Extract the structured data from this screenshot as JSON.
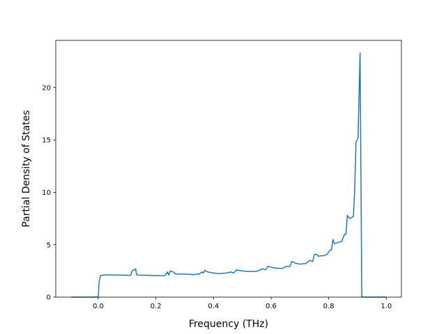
{
  "chart_data": {
    "type": "line",
    "title": "",
    "xlabel": "Frequency (THz)",
    "ylabel": "Partial Density of States",
    "xlim": [
      -0.1475,
      1.0525
    ],
    "ylim": [
      0,
      24.5
    ],
    "xticks": [
      0.0,
      0.2,
      0.4,
      0.6,
      0.8,
      1.0
    ],
    "xtick_labels": [
      "0.0",
      "0.2",
      "0.4",
      "0.6",
      "0.8",
      "1.0"
    ],
    "yticks": [
      0,
      5,
      10,
      15,
      20
    ],
    "ytick_labels": [
      "0",
      "5",
      "10",
      "15",
      "20"
    ],
    "grid": false,
    "legend": "none",
    "colors": {
      "line": "#1f77b4"
    },
    "series": [
      {
        "x": [
          -0.093,
          -0.002,
          0.0,
          0.003,
          0.008,
          0.02,
          0.05,
          0.08,
          0.113,
          0.118,
          0.13,
          0.133,
          0.14,
          0.17,
          0.2,
          0.228,
          0.235,
          0.24,
          0.245,
          0.25,
          0.26,
          0.27,
          0.3,
          0.33,
          0.35,
          0.36,
          0.365,
          0.37,
          0.38,
          0.4,
          0.42,
          0.445,
          0.46,
          0.47,
          0.48,
          0.5,
          0.52,
          0.55,
          0.56,
          0.57,
          0.58,
          0.59,
          0.6,
          0.62,
          0.64,
          0.655,
          0.665,
          0.672,
          0.68,
          0.69,
          0.7,
          0.72,
          0.735,
          0.745,
          0.75,
          0.757,
          0.765,
          0.775,
          0.785,
          0.795,
          0.805,
          0.81,
          0.815,
          0.82,
          0.83,
          0.845,
          0.855,
          0.86,
          0.865,
          0.873,
          0.879,
          0.886,
          0.89,
          0.895,
          0.902,
          0.909,
          0.915,
          0.92,
          0.93,
          1.0
        ],
        "values": [
          0,
          0,
          0,
          1.5,
          2.05,
          2.12,
          2.12,
          2.1,
          2.08,
          2.5,
          2.7,
          2.15,
          2.1,
          2.08,
          2.05,
          2.05,
          2.15,
          2.4,
          2.1,
          2.5,
          2.4,
          2.2,
          2.2,
          2.15,
          2.2,
          2.4,
          2.3,
          2.55,
          2.4,
          2.3,
          2.25,
          2.3,
          2.4,
          2.3,
          2.6,
          2.5,
          2.45,
          2.45,
          2.55,
          2.7,
          2.6,
          2.95,
          2.85,
          2.75,
          2.75,
          2.95,
          2.9,
          3.4,
          3.3,
          3.2,
          3.15,
          3.2,
          3.5,
          3.4,
          4.05,
          4.1,
          3.9,
          3.95,
          3.95,
          4.1,
          4.5,
          4.5,
          5.5,
          5.1,
          5.2,
          5.3,
          6.0,
          6.0,
          7.8,
          7.5,
          7.6,
          7.7,
          10.0,
          14.8,
          15.2,
          23.3,
          0,
          0,
          0,
          0
        ]
      }
    ]
  }
}
